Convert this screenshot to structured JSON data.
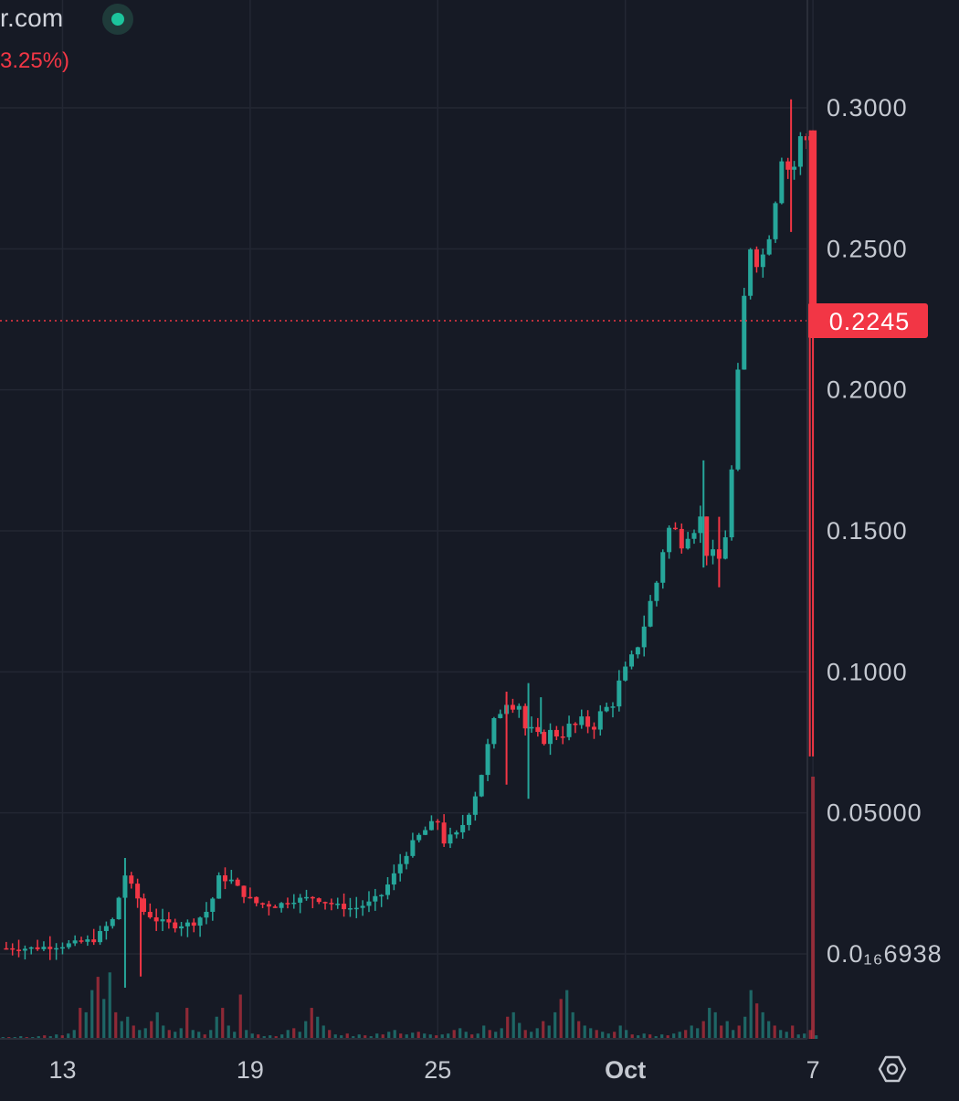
{
  "header": {
    "symbol_fragment": "r.com",
    "change_fragment": "3.25%)"
  },
  "chart_data": {
    "type": "candlestick",
    "title": "",
    "xlabel": "",
    "ylabel": "",
    "y_axis_labels": [
      "0.3000",
      "0.2500",
      "0.2000",
      "0.1500",
      "0.1000",
      "0.05000",
      "0.0₁₆6938"
    ],
    "y_axis_values": [
      0.3,
      0.25,
      0.2,
      0.15,
      0.1,
      0.05,
      0.0
    ],
    "ylim": [
      -0.014,
      0.318
    ],
    "x_axis_labels": [
      {
        "label": "13",
        "day": 13,
        "bold": false
      },
      {
        "label": "19",
        "day": 19,
        "bold": false
      },
      {
        "label": "25",
        "day": 25,
        "bold": false
      },
      {
        "label": "Oct",
        "day": 31,
        "bold": true
      },
      {
        "label": "7",
        "day": 37,
        "bold": false
      }
    ],
    "xlim": [
      11.0,
      38.75
    ],
    "last_price": 0.2245,
    "last_price_label": "0.2245",
    "grid": true,
    "colors": {
      "up": "#26a69a",
      "down": "#f23645",
      "grid": "#232733",
      "axis_text": "#c5c9d1",
      "background": "#161a25"
    },
    "price_path": [
      [
        11.0,
        0.002
      ],
      [
        12.0,
        0.002
      ],
      [
        13.0,
        0.003
      ],
      [
        14.0,
        0.005
      ],
      [
        14.6,
        0.012
      ],
      [
        15.0,
        0.028
      ],
      [
        15.3,
        0.022
      ],
      [
        15.6,
        0.015
      ],
      [
        16.0,
        0.012
      ],
      [
        16.6,
        0.01
      ],
      [
        17.2,
        0.011
      ],
      [
        17.7,
        0.016
      ],
      [
        18.0,
        0.027
      ],
      [
        18.4,
        0.026
      ],
      [
        18.8,
        0.021
      ],
      [
        19.2,
        0.018
      ],
      [
        19.8,
        0.017
      ],
      [
        20.3,
        0.019
      ],
      [
        21.0,
        0.02
      ],
      [
        21.8,
        0.017
      ],
      [
        22.3,
        0.016
      ],
      [
        22.8,
        0.018
      ],
      [
        23.2,
        0.021
      ],
      [
        23.6,
        0.028
      ],
      [
        24.0,
        0.036
      ],
      [
        24.5,
        0.043
      ],
      [
        25.0,
        0.047
      ],
      [
        25.2,
        0.04
      ],
      [
        25.6,
        0.042
      ],
      [
        25.9,
        0.048
      ],
      [
        26.3,
        0.06
      ],
      [
        26.6,
        0.073
      ],
      [
        26.9,
        0.085
      ],
      [
        27.2,
        0.091
      ],
      [
        27.6,
        0.089
      ],
      [
        27.8,
        0.08
      ],
      [
        28.2,
        0.076
      ],
      [
        28.6,
        0.078
      ],
      [
        29.0,
        0.079
      ],
      [
        29.5,
        0.081
      ],
      [
        30.0,
        0.082
      ],
      [
        30.5,
        0.088
      ],
      [
        30.8,
        0.095
      ],
      [
        31.2,
        0.103
      ],
      [
        31.5,
        0.115
      ],
      [
        31.7,
        0.12
      ],
      [
        32.0,
        0.132
      ],
      [
        32.3,
        0.151
      ],
      [
        32.7,
        0.148
      ],
      [
        33.1,
        0.155
      ],
      [
        33.4,
        0.153
      ],
      [
        33.6,
        0.145
      ],
      [
        33.8,
        0.138
      ],
      [
        34.1,
        0.14
      ],
      [
        34.4,
        0.17
      ],
      [
        34.6,
        0.2
      ],
      [
        34.9,
        0.245
      ],
      [
        35.1,
        0.265
      ],
      [
        35.3,
        0.24
      ],
      [
        35.6,
        0.262
      ],
      [
        35.9,
        0.28
      ],
      [
        36.1,
        0.3
      ],
      [
        36.25,
        0.27
      ],
      [
        36.4,
        0.28
      ],
      [
        36.6,
        0.286
      ],
      [
        36.9,
        0.291
      ],
      [
        37.0,
        0.22
      ]
    ],
    "spikes": [
      {
        "day": 15.0,
        "high": 0.034,
        "low": -0.012,
        "dir": "up"
      },
      {
        "day": 15.5,
        "high": 0.02,
        "low": -0.008,
        "dir": "down"
      },
      {
        "day": 27.2,
        "high": 0.093,
        "low": 0.06,
        "dir": "down"
      },
      {
        "day": 27.9,
        "high": 0.096,
        "low": 0.055,
        "dir": "up"
      },
      {
        "day": 28.3,
        "high": 0.091,
        "low": 0.078,
        "dir": "up"
      },
      {
        "day": 33.5,
        "high": 0.175,
        "low": 0.137,
        "dir": "up"
      },
      {
        "day": 34.0,
        "high": 0.155,
        "low": 0.13,
        "dir": "down"
      },
      {
        "day": 36.3,
        "high": 0.303,
        "low": 0.256,
        "dir": "down"
      },
      {
        "day": 36.9,
        "high": 0.292,
        "low": 0.07,
        "dir": "down"
      }
    ],
    "volume_ratio": [
      0.02,
      0.02,
      0.02,
      0.03,
      0.02,
      0.02,
      0.03,
      0.04,
      0.03,
      0.05,
      0.04,
      0.06,
      0.1,
      0.35,
      0.3,
      0.55,
      0.7,
      0.45,
      0.75,
      0.3,
      0.2,
      0.25,
      0.15,
      0.1,
      0.12,
      0.2,
      0.3,
      0.15,
      0.1,
      0.08,
      0.12,
      0.35,
      0.1,
      0.08,
      0.05,
      0.1,
      0.25,
      0.35,
      0.15,
      0.08,
      0.5,
      0.1,
      0.06,
      0.05,
      0.03,
      0.04,
      0.03,
      0.05,
      0.1,
      0.12,
      0.08,
      0.2,
      0.35,
      0.25,
      0.15,
      0.1,
      0.05,
      0.04,
      0.06,
      0.03,
      0.05,
      0.04,
      0.03,
      0.06,
      0.05,
      0.08,
      0.1,
      0.06,
      0.05,
      0.07,
      0.08,
      0.06,
      0.05,
      0.04,
      0.05,
      0.06,
      0.1,
      0.12,
      0.08,
      0.05,
      0.06,
      0.15,
      0.1,
      0.08,
      0.12,
      0.25,
      0.3,
      0.18,
      0.1,
      0.08,
      0.12,
      0.2,
      0.15,
      0.3,
      0.45,
      0.55,
      0.3,
      0.2,
      0.15,
      0.12,
      0.1,
      0.08,
      0.06,
      0.08,
      0.15,
      0.1,
      0.05,
      0.04,
      0.06,
      0.05,
      0.03,
      0.05,
      0.04,
      0.06,
      0.08,
      0.1,
      0.15,
      0.12,
      0.2,
      0.35,
      0.3,
      0.15,
      0.2,
      0.1,
      0.15,
      0.25,
      0.55,
      0.4,
      0.3,
      0.2,
      0.15,
      0.1,
      0.08,
      0.15,
      0.05,
      0.06,
      0.1,
      0.04
    ]
  }
}
